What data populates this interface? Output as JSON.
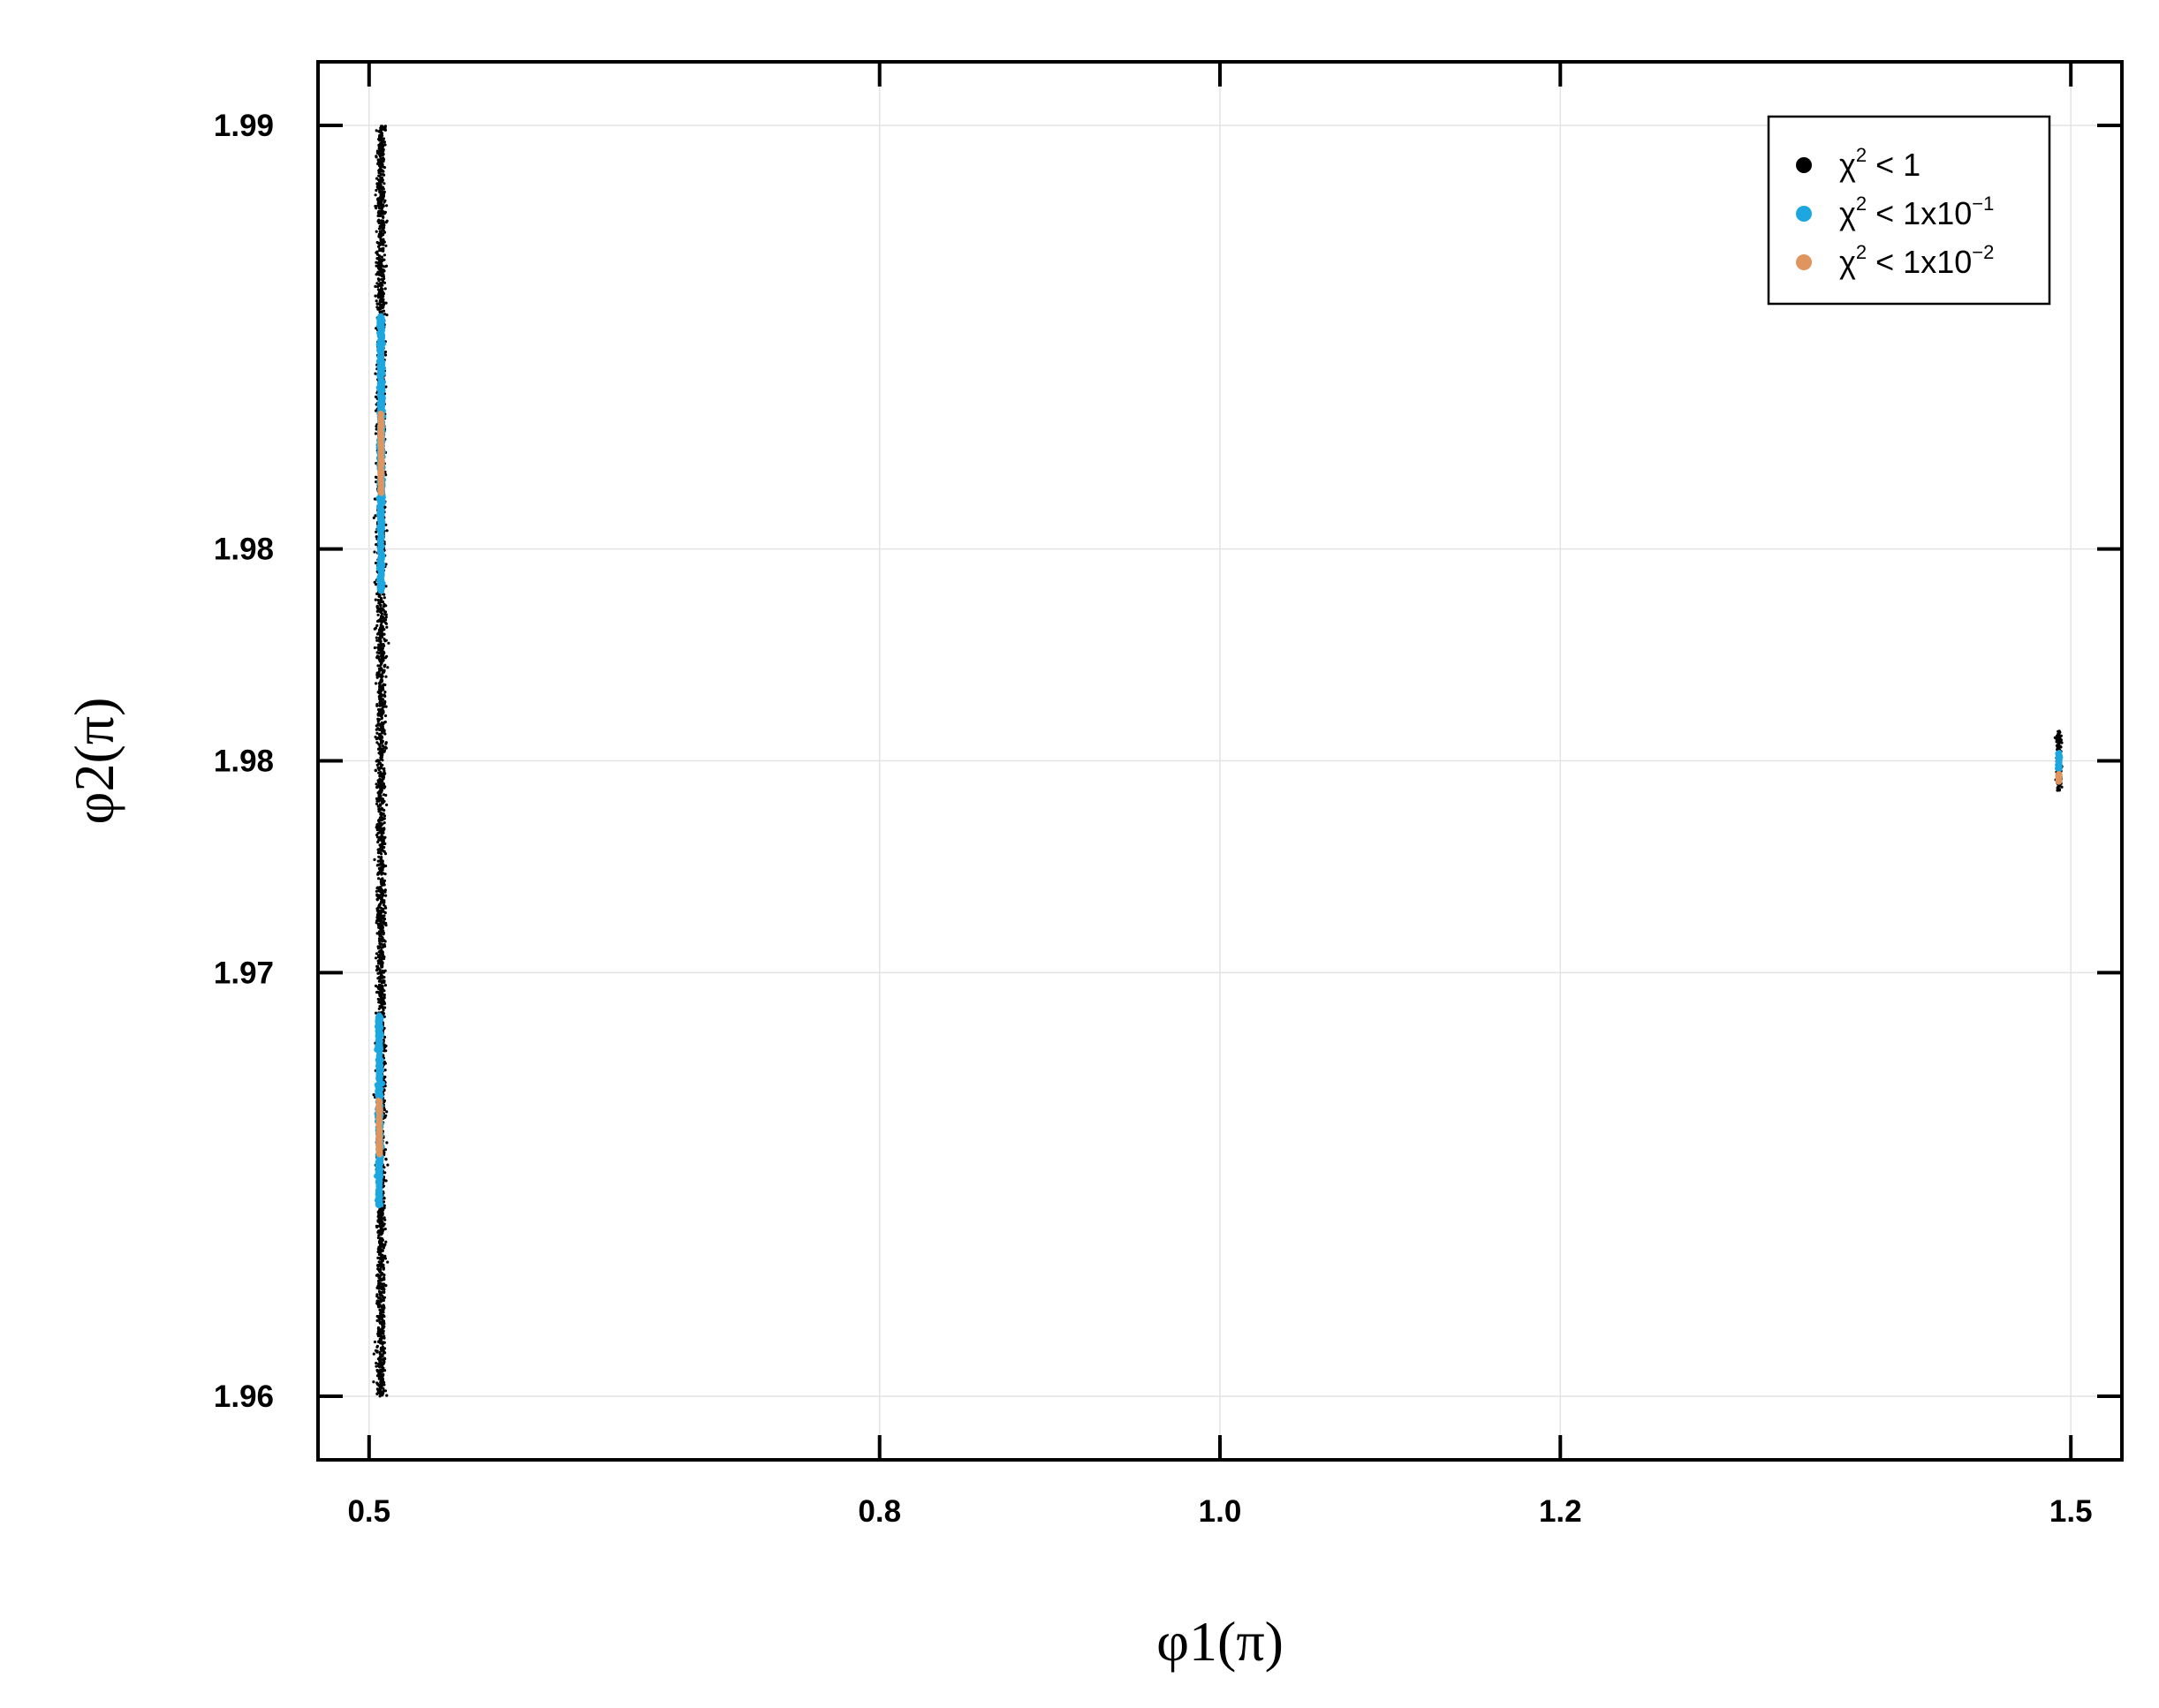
{
  "chart_data": {
    "type": "scatter",
    "xlabel": "φ1(π)",
    "ylabel": "φ2(π)",
    "xlim": [
      0.47,
      1.53
    ],
    "ylim": [
      1.9585,
      1.9915
    ],
    "x_ticks": [
      0.5,
      0.8,
      1.0,
      1.2,
      1.5
    ],
    "x_tick_labels": [
      "0.5",
      "0.8",
      "1.0",
      "1.2",
      "1.5"
    ],
    "y_ticks": [
      1.96,
      1.97,
      1.975,
      1.98,
      1.99
    ],
    "y_tick_labels": [
      "1.96",
      "1.97",
      "1.98",
      "1.98",
      "1.99"
    ],
    "grid": true,
    "legend_position": "top-right",
    "series": [
      {
        "name": "χ² < 1",
        "color": "#000000",
        "clusters": [
          {
            "x_center": 0.507,
            "x_spread": 0.0025,
            "y_range": [
              1.96,
              1.99
            ]
          },
          {
            "x_center": 1.493,
            "x_spread": 0.0015,
            "y_range": [
              1.9743,
              1.9757
            ]
          }
        ]
      },
      {
        "name": "χ² < 1x10⁻¹",
        "color": "#1ca7e0",
        "clusters": [
          {
            "x_center": 0.506,
            "x_spread": 0.001,
            "y_range": [
              1.9645,
              1.969
            ]
          },
          {
            "x_center": 0.507,
            "x_spread": 0.001,
            "y_range": [
              1.979,
              1.9855
            ]
          },
          {
            "x_center": 1.493,
            "x_spread": 0.0006,
            "y_range": [
              1.9748,
              1.9752
            ]
          }
        ]
      },
      {
        "name": "χ² < 1x10⁻²",
        "color": "#e0955f",
        "clusters": [
          {
            "x_center": 0.506,
            "x_spread": 0.0005,
            "y_range": [
              1.9657,
              1.967
            ]
          },
          {
            "x_center": 0.507,
            "x_spread": 0.0005,
            "y_range": [
              1.9813,
              1.9832
            ]
          },
          {
            "x_center": 1.493,
            "x_spread": 0.0004,
            "y_range": [
              1.9745,
              1.9747
            ]
          }
        ]
      }
    ],
    "legend": [
      {
        "base": "χ",
        "sup": "2",
        "rest": " < 1",
        "exp": ""
      },
      {
        "base": "χ",
        "sup": "2",
        "rest": " < 1x10",
        "exp": "−1"
      },
      {
        "base": "χ",
        "sup": "2",
        "rest": " < 1x10",
        "exp": "−2"
      }
    ]
  }
}
